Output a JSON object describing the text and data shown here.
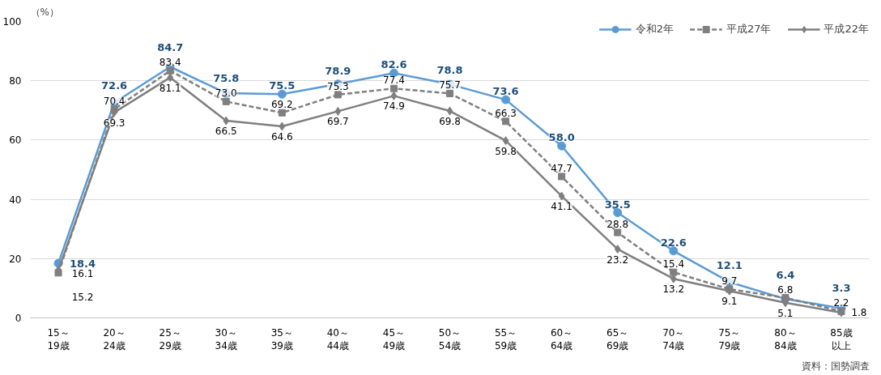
{
  "chart_data": {
    "type": "line",
    "ylabel": "（%）",
    "categories": [
      "15～19歳",
      "20～24歳",
      "25～29歳",
      "30～34歳",
      "35～39歳",
      "40～44歳",
      "45～49歳",
      "50～54歳",
      "55～59歳",
      "60～64歳",
      "65～69歳",
      "70～74歳",
      "75～79歳",
      "80～84歳",
      "85歳以上"
    ],
    "series": [
      {
        "name": "令和2年",
        "color": "#5b9bd5",
        "marker": "circle",
        "line_style": "solid",
        "values": [
          18.4,
          72.6,
          84.7,
          75.8,
          75.5,
          78.9,
          82.6,
          78.8,
          73.6,
          58.0,
          35.5,
          22.6,
          12.1,
          6.4,
          3.3
        ],
        "value_labels": [
          "18.4",
          "72.6",
          "84.7",
          "75.8",
          "75.5",
          "78.9",
          "82.6",
          "78.8",
          "73.6",
          "58.0",
          "35.5",
          "22.6",
          "12.1",
          "6.4",
          "3.3"
        ]
      },
      {
        "name": "平成27年",
        "color": "#7f7f7f",
        "marker": "square",
        "line_style": "dashed",
        "values": [
          15.2,
          70.4,
          83.4,
          73.0,
          69.2,
          75.3,
          77.4,
          75.7,
          66.3,
          47.7,
          28.8,
          15.4,
          9.7,
          6.8,
          2.2
        ],
        "value_labels": [
          "15.2",
          "70.4",
          "83.4",
          "73.0",
          "69.2",
          "75.3",
          "77.4",
          "75.7",
          "66.3",
          "47.7",
          "28.8",
          "15.4",
          "9.7",
          "6.8",
          "2.2"
        ]
      },
      {
        "name": "平成22年",
        "color": "#7f7f7f",
        "marker": "diamond",
        "line_style": "solid",
        "values": [
          16.1,
          69.3,
          81.1,
          66.5,
          64.6,
          69.7,
          74.9,
          69.8,
          59.8,
          41.1,
          23.2,
          13.2,
          9.1,
          5.1,
          1.8
        ],
        "value_labels": [
          "16.1",
          "69.3",
          "81.1",
          "66.5",
          "64.6",
          "69.7",
          "74.9",
          "69.8",
          "59.8",
          "41.1",
          "23.2",
          "13.2",
          "9.1",
          "5.1",
          "1.8"
        ]
      }
    ],
    "ylim": [
      0,
      100
    ],
    "yticks": [
      0,
      20,
      40,
      60,
      80,
      100
    ],
    "grid": "y",
    "legend": "top right",
    "annotations": [
      "資料：国勢調査"
    ]
  }
}
